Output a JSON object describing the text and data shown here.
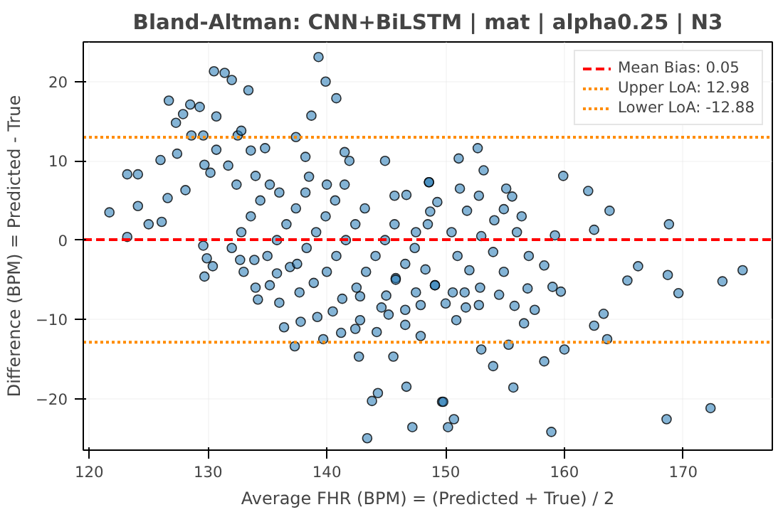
{
  "chart_data": {
    "type": "scatter",
    "title": "Bland-Altman: CNN+BiLSTM | mat | alpha0.25 | N3",
    "xlabel": "Average FHR (BPM) = (Predicted + True) / 2",
    "ylabel": "Difference (BPM) = Predicted - True",
    "x": [
      139.3,
      130.5,
      131.4,
      132.0,
      139.9,
      133.4,
      140.8,
      126.7,
      128.5,
      129.3,
      127.9,
      127.3,
      130.7,
      138.7,
      128.6,
      129.6,
      132.5,
      132.8,
      137.4,
      126.0,
      127.4,
      123.2,
      124.1,
      121.7,
      124.1,
      125.0,
      123.2,
      126.1,
      129.7,
      130.7,
      131.7,
      133.6,
      134.8,
      138.2,
      141.9,
      144.9,
      141.5,
      130.2,
      134.0,
      128.1,
      126.6,
      132.4,
      148.6,
      145.7,
      146.7,
      152.7,
      151.1,
      153.2,
      148.6,
      151.2,
      159.9,
      162.0,
      163.8,
      168.8,
      155.1,
      155.6,
      154.9,
      156.4,
      154.1,
      159.2,
      162.5,
      151.8,
      149.3,
      148.7,
      152.8,
      158.3,
      159.0,
      159.7,
      165.3,
      166.2,
      168.7,
      169.6,
      173.3,
      175.0,
      162.5,
      163.3,
      163.6,
      160.0,
      158.3,
      155.7,
      154.0,
      153.0,
      155.3,
      149.7,
      150.7,
      150.2,
      158.9,
      168.6,
      172.3,
      156.6,
      157.5,
      156.9,
      155.8,
      152.8,
      151.7,
      150.9,
      150.0,
      151.6,
      154.5,
      152.9,
      152.0,
      154.9,
      150.6,
      149.1,
      129.7,
      130.4,
      129.9,
      129.6,
      134.2,
      136.0,
      136.4,
      137.3,
      139.7,
      137.8,
      139.2,
      141.2,
      142.4,
      142.7,
      145.6,
      146.7,
      143.8,
      144.3,
      143.4,
      147.2,
      149.8,
      135.2,
      137.7,
      140.5,
      142.8,
      144.2,
      145.2,
      146.6,
      147.9,
      144.6,
      146.6,
      147.9,
      147.5,
      148.3,
      149.1,
      145.8,
      142.8,
      141.3,
      138.9,
      136.9,
      133.9,
      132.7,
      135.8,
      132.0,
      132.8,
      133.6,
      134.4,
      135.2,
      135.0,
      135.8,
      136.6,
      137.4,
      138.2,
      137.5,
      138.3,
      139.1,
      139.9,
      140.7,
      141.5,
      140.0,
      140.8,
      141.6,
      142.4,
      143.2,
      142.5,
      143.3,
      144.1,
      144.9,
      145.7,
      145.0,
      145.8,
      146.6,
      147.4,
      133.0,
      134.0,
      136.0,
      138.5,
      140.0,
      147.5,
      148.5,
      150.5,
      153.0,
      156.0,
      151.0,
      154.0,
      157.0
    ],
    "series": [
      {
        "color": "#1f77b4",
        "values": [
          23.1,
          21.3,
          21.1,
          20.2,
          20.0,
          18.9,
          17.9,
          17.6,
          17.1,
          16.8,
          15.9,
          14.8,
          15.6,
          15.7,
          13.2,
          13.2,
          13.2,
          13.8,
          13.0,
          10.1,
          10.9,
          8.3,
          8.3,
          3.5,
          4.3,
          2.0,
          0.4,
          2.3,
          9.5,
          11.4,
          9.4,
          11.3,
          11.6,
          10.5,
          10.0,
          10.0,
          11.1,
          8.5,
          8.1,
          6.3,
          5.3,
          7.0,
          7.3,
          5.6,
          5.7,
          11.6,
          10.3,
          8.8,
          7.3,
          6.5,
          8.1,
          6.2,
          3.7,
          2.0,
          6.5,
          5.5,
          3.9,
          3.0,
          2.5,
          0.6,
          1.3,
          3.7,
          4.8,
          3.6,
          5.6,
          -3.2,
          -5.9,
          -6.5,
          -5.1,
          -3.3,
          -4.4,
          -6.7,
          -5.2,
          -3.8,
          -10.8,
          -9.3,
          -12.5,
          -13.8,
          -15.3,
          -18.6,
          -15.9,
          -13.8,
          -13.2,
          -20.4,
          -22.6,
          -23.6,
          -24.2,
          -22.6,
          -21.2,
          -10.5,
          -8.8,
          -6.1,
          -8.3,
          -8.2,
          -8.5,
          -10.1,
          -8.0,
          -6.6,
          -6.9,
          -6.0,
          -3.8,
          -4.0,
          -6.6,
          -5.7,
          -4.6,
          -3.3,
          -2.3,
          -0.7,
          -7.5,
          -7.9,
          -11.0,
          -13.4,
          -12.5,
          -10.3,
          -9.7,
          -11.7,
          -11.2,
          -14.7,
          -14.7,
          -18.5,
          -20.3,
          -19.3,
          -25.0,
          -23.6,
          -20.4,
          -5.7,
          -6.6,
          -9.0,
          -10.1,
          -11.6,
          -9.4,
          -10.7,
          -12.1,
          -8.5,
          -8.8,
          -8.2,
          -6.6,
          -3.7,
          -5.7,
          -4.8,
          -7.1,
          -7.4,
          -5.4,
          -3.4,
          -2.5,
          -2.5,
          -4.2,
          -1.0,
          1.0,
          3.0,
          5.0,
          7.0,
          -2.0,
          0.0,
          2.0,
          4.0,
          6.0,
          -3.0,
          -1.0,
          1.0,
          3.0,
          5.0,
          7.0,
          -4.0,
          -2.0,
          0.0,
          2.0,
          4.0,
          -6.0,
          -4.0,
          -2.0,
          0.0,
          2.0,
          -7.0,
          -5.0,
          -3.0,
          -1.0,
          -4.0,
          -6.0,
          6.0,
          8.0,
          7.0,
          1.0,
          2.0,
          1.0,
          0.5,
          1.0,
          -2.0,
          -1.5,
          -2.0
        ]
      }
    ],
    "marker": "circle",
    "xlim": [
      119.5,
      177.5
    ],
    "ylim": [
      -26.5,
      25
    ],
    "xticks": [
      120,
      130,
      140,
      150,
      160,
      170
    ],
    "yticks": [
      -20,
      -10,
      0,
      10,
      20
    ],
    "ref_lines": [
      {
        "axis": "y",
        "value": 0.05,
        "label": "Mean Bias: 0.05",
        "color": "#ff0000",
        "line_style": "dashed"
      },
      {
        "axis": "y",
        "value": 12.98,
        "label": "Upper LoA: 12.98",
        "color": "#ff8c00",
        "line_style": "dotted"
      },
      {
        "axis": "y",
        "value": -12.88,
        "label": "Lower LoA: -12.88",
        "color": "#ff8c00",
        "line_style": "dotted"
      }
    ],
    "grid": true,
    "legend": "top right"
  }
}
